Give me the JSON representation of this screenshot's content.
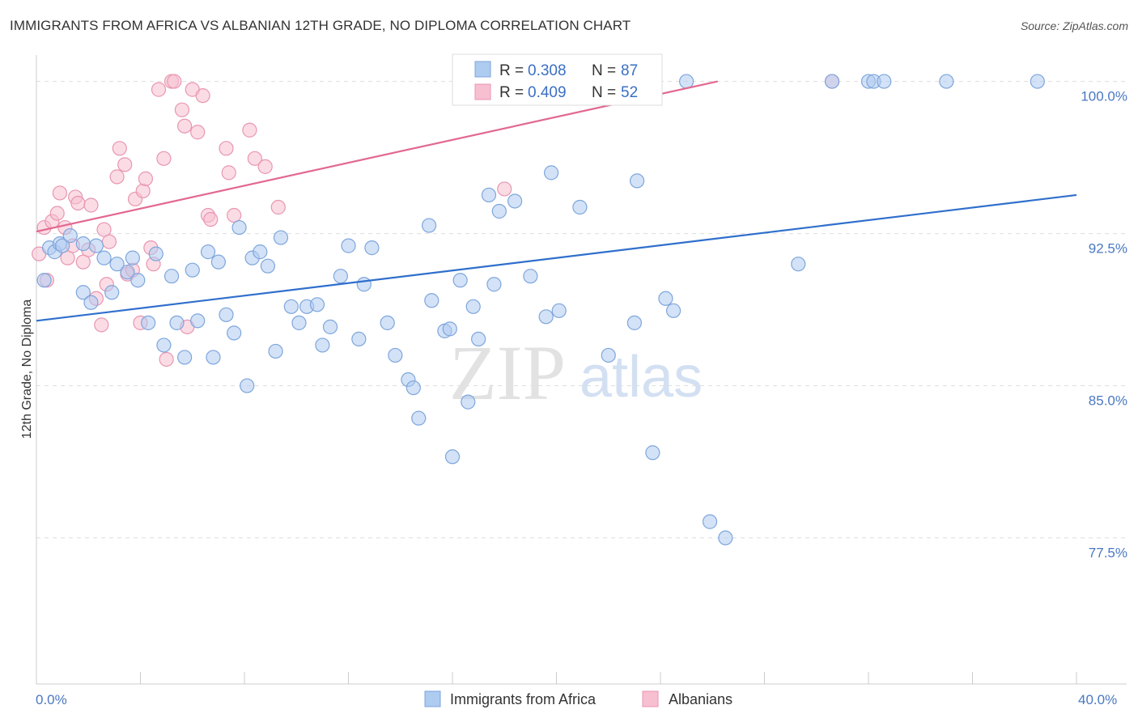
{
  "title": "IMMIGRANTS FROM AFRICA VS ALBANIAN 12TH GRADE, NO DIPLOMA CORRELATION CHART",
  "source": "Source: ZipAtlas.com",
  "watermark": {
    "zip": "ZIP",
    "atlas": "atlas"
  },
  "legend_top": [
    {
      "r_label": "R =",
      "r_value": "0.308",
      "n_label": "N =",
      "n_value": "87"
    },
    {
      "r_label": "R =",
      "r_value": "0.409",
      "n_label": "N =",
      "n_value": "52"
    }
  ],
  "legend_bottom": [
    "Immigrants from Africa",
    "Albanians"
  ],
  "colors": {
    "blue_fill": "#aecbf0",
    "blue_stroke": "#7ea6dc",
    "blue_line": "#2f6fcc",
    "pink_fill": "#f7bfd0",
    "pink_stroke": "#e896b2",
    "pink_line": "#e2688f",
    "tick_text": "#4a78c2",
    "grid": "#dddddd"
  },
  "chart_data": {
    "type": "scatter",
    "title": "IMMIGRANTS FROM AFRICA VS ALBANIAN 12TH GRADE, NO DIPLOMA CORRELATION CHART",
    "xlabel": "",
    "ylabel": "12th Grade, No Diploma",
    "xlim": [
      0,
      40
    ],
    "ylim": [
      70.3,
      101.3
    ],
    "x_tick_labels": [
      "0.0%",
      "40.0%"
    ],
    "y_ticks": [
      77.5,
      85.0,
      92.5,
      100.0
    ],
    "y_tick_labels": [
      "77.5%",
      "85.0%",
      "92.5%",
      "100.0%"
    ],
    "grid": "horizontal dashed",
    "legend_placement": "top-center",
    "series": [
      {
        "name": "Immigrants from Africa",
        "r": 0.308,
        "n": 87,
        "trend": {
          "x": [
            0,
            40
          ],
          "y": [
            88.2,
            94.4
          ]
        },
        "points": [
          [
            0.3,
            90.2
          ],
          [
            0.5,
            91.8
          ],
          [
            0.7,
            91.6
          ],
          [
            0.9,
            92.0
          ],
          [
            1.0,
            91.9
          ],
          [
            1.3,
            92.4
          ],
          [
            1.8,
            92.0
          ],
          [
            1.8,
            89.6
          ],
          [
            2.1,
            89.1
          ],
          [
            2.3,
            91.9
          ],
          [
            2.6,
            91.3
          ],
          [
            2.9,
            89.6
          ],
          [
            3.1,
            91.0
          ],
          [
            3.5,
            90.6
          ],
          [
            3.7,
            91.3
          ],
          [
            3.9,
            90.2
          ],
          [
            4.3,
            88.1
          ],
          [
            4.6,
            91.5
          ],
          [
            4.9,
            87.0
          ],
          [
            5.2,
            90.4
          ],
          [
            5.4,
            88.1
          ],
          [
            5.7,
            86.4
          ],
          [
            6.0,
            90.7
          ],
          [
            6.2,
            88.2
          ],
          [
            6.6,
            91.6
          ],
          [
            6.8,
            86.4
          ],
          [
            7.0,
            91.1
          ],
          [
            7.3,
            88.5
          ],
          [
            7.6,
            87.6
          ],
          [
            7.8,
            92.8
          ],
          [
            8.1,
            85.0
          ],
          [
            8.3,
            91.3
          ],
          [
            8.6,
            91.6
          ],
          [
            8.9,
            90.9
          ],
          [
            9.2,
            86.7
          ],
          [
            9.4,
            92.3
          ],
          [
            9.8,
            88.9
          ],
          [
            10.1,
            88.1
          ],
          [
            10.4,
            88.9
          ],
          [
            10.8,
            89.0
          ],
          [
            11.0,
            87.0
          ],
          [
            11.3,
            87.9
          ],
          [
            11.7,
            90.4
          ],
          [
            12.0,
            91.9
          ],
          [
            12.4,
            87.3
          ],
          [
            12.6,
            90.0
          ],
          [
            12.9,
            91.8
          ],
          [
            13.5,
            88.1
          ],
          [
            13.8,
            86.5
          ],
          [
            14.3,
            85.3
          ],
          [
            14.5,
            84.9
          ],
          [
            14.7,
            83.4
          ],
          [
            15.1,
            92.9
          ],
          [
            15.2,
            89.2
          ],
          [
            15.7,
            87.7
          ],
          [
            15.9,
            87.8
          ],
          [
            16.0,
            81.5
          ],
          [
            16.3,
            90.2
          ],
          [
            16.6,
            84.2
          ],
          [
            16.8,
            88.9
          ],
          [
            17.0,
            87.3
          ],
          [
            17.4,
            94.4
          ],
          [
            17.6,
            90.0
          ],
          [
            17.8,
            93.6
          ],
          [
            18.4,
            94.1
          ],
          [
            19.0,
            90.4
          ],
          [
            19.6,
            88.4
          ],
          [
            19.8,
            95.5
          ],
          [
            20.1,
            88.7
          ],
          [
            20.9,
            93.8
          ],
          [
            21.8,
            100.0
          ],
          [
            22.0,
            86.5
          ],
          [
            23.0,
            88.1
          ],
          [
            23.1,
            95.1
          ],
          [
            23.7,
            81.7
          ],
          [
            24.2,
            89.3
          ],
          [
            24.5,
            88.7
          ],
          [
            25.0,
            100.0
          ],
          [
            25.9,
            78.3
          ],
          [
            26.5,
            77.5
          ],
          [
            29.3,
            91.0
          ],
          [
            30.6,
            100.0
          ],
          [
            32.0,
            100.0
          ],
          [
            32.2,
            100.0
          ],
          [
            32.6,
            100.0
          ],
          [
            35.0,
            100.0
          ],
          [
            38.5,
            100.0
          ]
        ]
      },
      {
        "name": "Albanians",
        "r": 0.409,
        "n": 52,
        "trend": {
          "x": [
            0,
            26.2
          ],
          "y": [
            92.6,
            100.0
          ]
        },
        "points": [
          [
            0.1,
            91.5
          ],
          [
            0.3,
            92.8
          ],
          [
            0.4,
            90.2
          ],
          [
            0.6,
            93.1
          ],
          [
            0.8,
            93.5
          ],
          [
            0.9,
            94.5
          ],
          [
            1.1,
            92.8
          ],
          [
            1.2,
            91.3
          ],
          [
            1.4,
            91.9
          ],
          [
            1.5,
            94.3
          ],
          [
            1.6,
            94.0
          ],
          [
            1.8,
            91.1
          ],
          [
            2.0,
            91.7
          ],
          [
            2.1,
            93.9
          ],
          [
            2.3,
            89.3
          ],
          [
            2.5,
            88.0
          ],
          [
            2.6,
            92.7
          ],
          [
            2.7,
            90.0
          ],
          [
            2.8,
            92.1
          ],
          [
            3.1,
            95.3
          ],
          [
            3.2,
            96.7
          ],
          [
            3.4,
            95.9
          ],
          [
            3.5,
            90.5
          ],
          [
            3.7,
            90.7
          ],
          [
            3.8,
            94.2
          ],
          [
            4.0,
            88.1
          ],
          [
            4.1,
            94.6
          ],
          [
            4.2,
            95.2
          ],
          [
            4.4,
            91.8
          ],
          [
            4.5,
            91.0
          ],
          [
            4.7,
            99.6
          ],
          [
            4.9,
            96.2
          ],
          [
            5.0,
            86.3
          ],
          [
            5.2,
            100.0
          ],
          [
            5.3,
            100.0
          ],
          [
            5.6,
            98.6
          ],
          [
            5.7,
            97.8
          ],
          [
            5.8,
            87.9
          ],
          [
            6.0,
            99.6
          ],
          [
            6.2,
            97.5
          ],
          [
            6.4,
            99.3
          ],
          [
            6.6,
            93.4
          ],
          [
            6.7,
            93.2
          ],
          [
            7.3,
            96.7
          ],
          [
            7.4,
            95.5
          ],
          [
            7.6,
            93.4
          ],
          [
            8.2,
            97.6
          ],
          [
            8.4,
            96.2
          ],
          [
            8.8,
            95.8
          ],
          [
            9.3,
            93.8
          ],
          [
            18.0,
            94.7
          ],
          [
            30.6,
            100.0
          ]
        ]
      }
    ]
  }
}
